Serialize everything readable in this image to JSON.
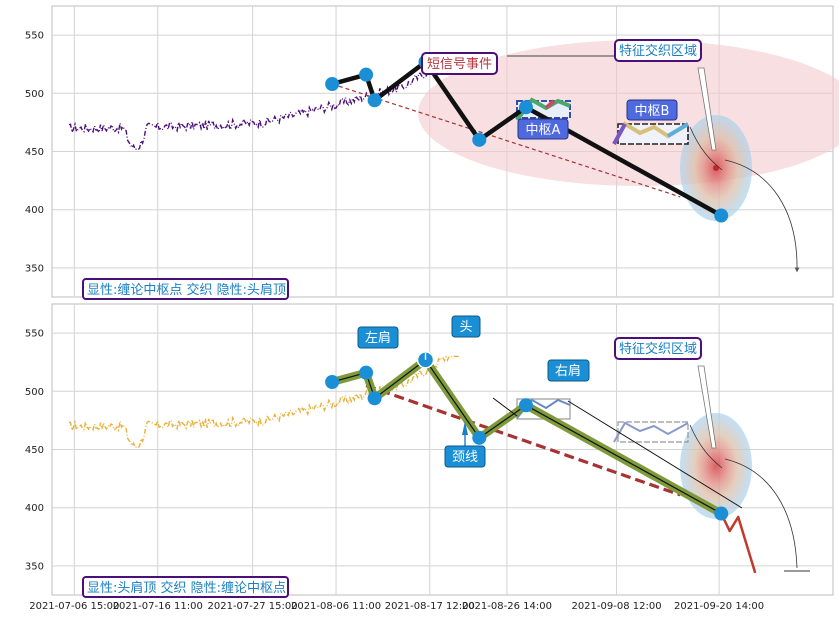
{
  "chart_data": [
    {
      "type": "line",
      "ylim": [
        325,
        575
      ],
      "yticks": [
        350,
        400,
        450,
        500,
        550
      ],
      "x_range": [
        "2021-07-04 00:00",
        "2021-10-04 00:00"
      ],
      "grid": true,
      "price_color": "#4b0f7a",
      "caption": "显性:缠论中枢点 交织 隐性:头肩顶",
      "caption_color": "#1a7fc4",
      "box_border_color": "#4b0f7a",
      "annotations": {
        "signal_event": "短信号事件",
        "zone_label": "特征交织区域",
        "pivot_a": "中枢A",
        "pivot_b": "中枢B"
      },
      "highlight_color": "#f3c9cd",
      "stroke_points": [
        {
          "x": "2021-08-06 00:00",
          "y": 508
        },
        {
          "x": "2021-08-10 00:00",
          "y": 516
        },
        {
          "x": "2021-08-11 00:00",
          "y": 494
        },
        {
          "x": "2021-08-17 00:00",
          "y": 527
        },
        {
          "x": "2021-08-23 08:00",
          "y": 460
        },
        {
          "x": "2021-08-28 20:00",
          "y": 488
        },
        {
          "x": "2021-09-20 20:00",
          "y": 395
        }
      ],
      "trend_line": [
        {
          "x": "2021-08-06 00:00",
          "y": 508
        },
        {
          "x": "2021-09-16 00:00",
          "y": 411
        }
      ]
    },
    {
      "type": "line",
      "ylim": [
        325,
        575
      ],
      "yticks": [
        350,
        400,
        450,
        500,
        550
      ],
      "x_range": [
        "2021-07-04 00:00",
        "2021-10-04 00:00"
      ],
      "grid": true,
      "price_color": "#e8b23a",
      "caption": "显性:头肩顶 交织 隐性:缠论中枢点",
      "caption_color": "#1a7fc4",
      "box_border_color": "#4b0f7a",
      "annotations": {
        "left_shoulder": "左肩",
        "head": "头",
        "right_shoulder": "右肩",
        "neckline": "颈线",
        "zone_label": "特征交织区域"
      },
      "stroke_points": [
        {
          "x": "2021-08-06 00:00",
          "y": 508
        },
        {
          "x": "2021-08-10 00:00",
          "y": 516
        },
        {
          "x": "2021-08-11 00:00",
          "y": 494
        },
        {
          "x": "2021-08-17 00:00",
          "y": 527
        },
        {
          "x": "2021-08-23 08:00",
          "y": 460
        },
        {
          "x": "2021-08-28 20:00",
          "y": 488
        },
        {
          "x": "2021-09-20 20:00",
          "y": 395
        }
      ],
      "projection_points": [
        {
          "x": "2021-09-20 20:00",
          "y": 395
        },
        {
          "x": "2021-09-21 20:00",
          "y": 380
        },
        {
          "x": "2021-09-22 20:00",
          "y": 392
        },
        {
          "x": "2021-09-24 20:00",
          "y": 344
        }
      ],
      "neckline": [
        {
          "x": "2021-08-10 00:00",
          "y": 505
        },
        {
          "x": "2021-09-16 00:00",
          "y": 411
        }
      ]
    }
  ],
  "x_tick_labels": [
    "2021-07-06 15:00",
    "2021-07-16 11:00",
    "2021-07-27 15:00",
    "2021-08-06 11:00",
    "2021-08-17 12:00",
    "2021-08-26 14:00",
    "2021-09-08 12:00",
    "2021-09-20 14:00"
  ],
  "x_tick_values": [
    "2021-07-06 15:00",
    "2021-07-16 11:00",
    "2021-07-27 15:00",
    "2021-08-06 11:00",
    "2021-08-17 12:00",
    "2021-08-26 14:00",
    "2021-09-08 12:00",
    "2021-09-20 14:00"
  ]
}
